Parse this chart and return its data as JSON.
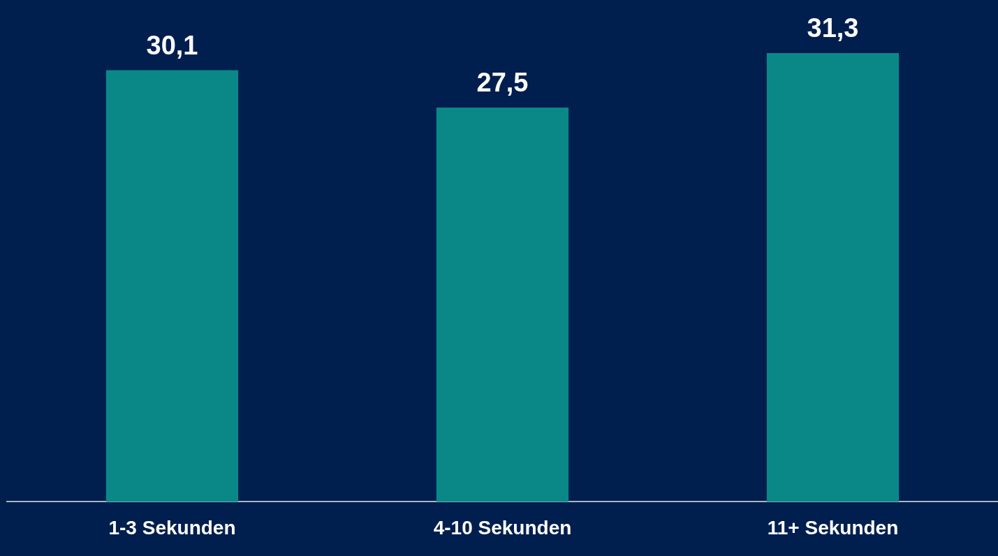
{
  "chart_data": {
    "type": "bar",
    "categories": [
      "1-3 Sekunden",
      "4-10 Sekunden",
      "11+ Sekunden"
    ],
    "values": [
      30.1,
      27.5,
      31.3
    ],
    "value_labels": [
      "30,1",
      "27,5",
      "31,3"
    ],
    "color": "#0a8888",
    "grid": false,
    "legend": false
  }
}
